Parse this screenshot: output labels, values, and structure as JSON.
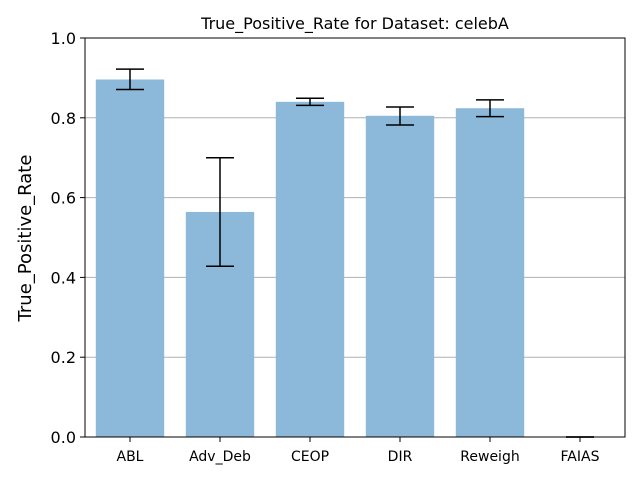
{
  "chart_data": {
    "type": "bar",
    "title": "True_Positive_Rate for Dataset: celebA",
    "xlabel": "",
    "ylabel": "True_Positive_Rate",
    "ylim": [
      0,
      1.0
    ],
    "yticks": [
      "0.0",
      "0.2",
      "0.4",
      "0.6",
      "0.8",
      "1.0"
    ],
    "grid": "horizontal",
    "bar_color": "#8cb9d9",
    "categories": [
      "ABL",
      "Adv_Deb",
      "CEOP",
      "DIR",
      "Reweigh",
      "FAIAS"
    ],
    "values": [
      0.896,
      0.564,
      0.84,
      0.805,
      0.824,
      0.0
    ],
    "error_low": [
      0.871,
      0.428,
      0.831,
      0.782,
      0.803,
      0.0
    ],
    "error_high": [
      0.922,
      0.7,
      0.849,
      0.827,
      0.845,
      0.0
    ]
  }
}
